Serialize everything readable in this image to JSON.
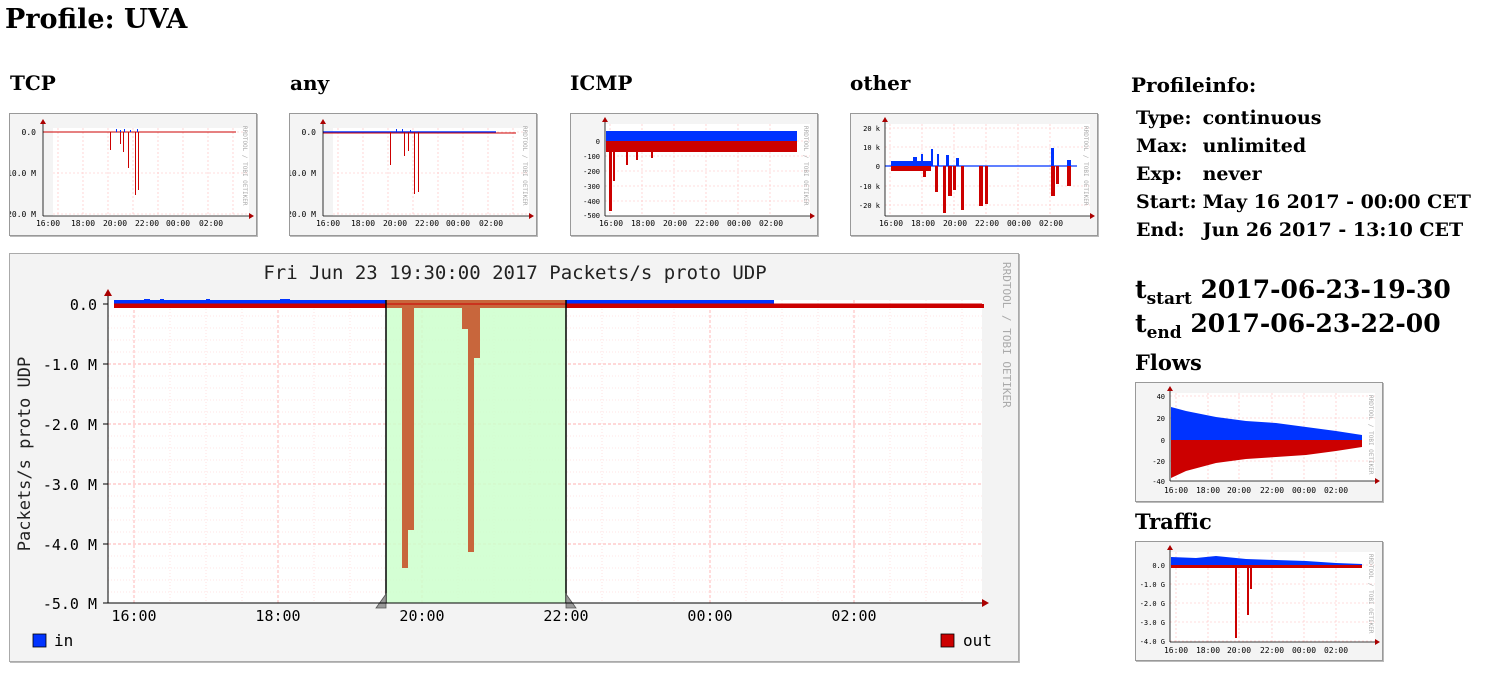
{
  "page": {
    "title": "Profile: UVA"
  },
  "graphs": {
    "tcp": {
      "title": "TCP",
      "yticks": [
        "0.0",
        "-10.0 M",
        "-20.0 M"
      ],
      "xticks": [
        "16:00",
        "18:00",
        "20:00",
        "22:00",
        "00:00",
        "02:00"
      ],
      "watermark": "RRDTOOL / TOBI OETIKER"
    },
    "any": {
      "title": "any",
      "yticks": [
        "0.0",
        "-10.0 M",
        "-20.0 M"
      ],
      "xticks": [
        "16:00",
        "18:00",
        "20:00",
        "22:00",
        "00:00",
        "02:00"
      ],
      "watermark": "RRDTOOL / TOBI OETIKER"
    },
    "icmp": {
      "title": "ICMP",
      "yticks": [
        "0",
        "-100",
        "-200",
        "-300",
        "-400",
        "-500"
      ],
      "xticks": [
        "16:00",
        "18:00",
        "20:00",
        "22:00",
        "00:00",
        "02:00"
      ],
      "watermark": "RRDTOOL / TOBI OETIKER"
    },
    "other": {
      "title": "other",
      "yticks": [
        "20 k",
        "10 k",
        "0",
        "-10 k",
        "-20 k"
      ],
      "xticks": [
        "16:00",
        "18:00",
        "20:00",
        "22:00",
        "00:00",
        "02:00"
      ],
      "watermark": "RRDTOOL / TOBI OETIKER"
    }
  },
  "main_graph": {
    "title": "Fri Jun 23 19:30:00 2017 Packets/s proto UDP",
    "ylabel": "Packets/s proto UDP",
    "yticks": [
      "0.0",
      "-1.0 M",
      "-2.0 M",
      "-3.0 M",
      "-4.0 M",
      "-5.0 M"
    ],
    "xticks": [
      "16:00",
      "18:00",
      "20:00",
      "22:00",
      "00:00",
      "02:00"
    ],
    "watermark": "RRDTOOL / TOBI OETIKER",
    "legend_in": "in",
    "legend_out": "out"
  },
  "profileinfo": {
    "title": "Profileinfo:",
    "rows": [
      {
        "label": "Type:",
        "value": "continuous"
      },
      {
        "label": "Max:",
        "value": "unlimited"
      },
      {
        "label": "Exp:",
        "value": "never"
      },
      {
        "label": "Start:",
        "value": "May 16 2017 - 00:00 CET"
      },
      {
        "label": "End:",
        "value": "Jun 26 2017 - 13:10 CET"
      }
    ]
  },
  "time": {
    "tstart_t": "t",
    "tstart_sub": "start",
    "tstart_value": "2017-06-23-19-30",
    "tend_t": "t",
    "tend_sub": "end",
    "tend_value": "2017-06-23-22-00"
  },
  "flows": {
    "title": "Flows",
    "yticks": [
      "40",
      "20",
      "0",
      "-20",
      "-40"
    ],
    "xticks": [
      "16:00",
      "18:00",
      "20:00",
      "22:00",
      "00:00",
      "02:00"
    ],
    "watermark": "RRDTOOL / TOBI OETIKER"
  },
  "traffic": {
    "title": "Traffic",
    "yticks": [
      "0.0",
      "-1.0 G",
      "-2.0 G",
      "-3.0 G",
      "-4.0 G"
    ],
    "xticks": [
      "16:00",
      "18:00",
      "20:00",
      "22:00",
      "00:00",
      "02:00"
    ],
    "watermark": "RRDTOOL / TOBI OETIKER"
  },
  "colors": {
    "in": "#0033ff",
    "out": "#cc0000",
    "selection": "#ccffcc",
    "selection_out": "#c8663c",
    "grid": "#ffb0b0"
  }
}
